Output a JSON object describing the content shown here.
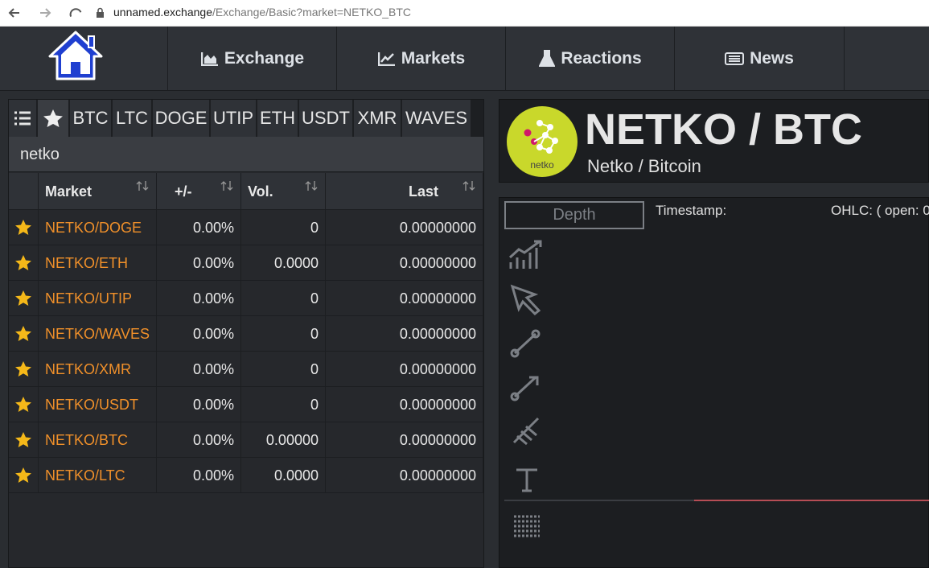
{
  "browser": {
    "host": "unnamed.exchange",
    "path": "/Exchange/Basic?market=NETKO_BTC"
  },
  "nav": {
    "items": [
      "Exchange",
      "Markets",
      "Reactions",
      "News"
    ]
  },
  "market_tabs": [
    "BTC",
    "LTC",
    "DOGE",
    "UTIP",
    "ETH",
    "USDT",
    "XMR",
    "WAVES"
  ],
  "search": "netko",
  "table": {
    "columns": [
      "Market",
      "+/-",
      "Vol.",
      "Last"
    ],
    "rows": [
      [
        "NETKO/DOGE",
        "0.00%",
        "0",
        "0.00000000"
      ],
      [
        "NETKO/ETH",
        "0.00%",
        "0.0000",
        "0.00000000"
      ],
      [
        "NETKO/UTIP",
        "0.00%",
        "0",
        "0.00000000"
      ],
      [
        "NETKO/WAVES",
        "0.00%",
        "0",
        "0.00000000"
      ],
      [
        "NETKO/XMR",
        "0.00%",
        "0",
        "0.00000000"
      ],
      [
        "NETKO/USDT",
        "0.00%",
        "0",
        "0.00000000"
      ],
      [
        "NETKO/BTC",
        "0.00%",
        "0.00000",
        "0.00000000"
      ],
      [
        "NETKO/LTC",
        "0.00%",
        "0.0000",
        "0.00000000"
      ]
    ]
  },
  "coin": {
    "title": "NETKO / BTC",
    "subtitle": "Netko / Bitcoin",
    "logo_text": "netko"
  },
  "chart_panel": {
    "depth_button": "Depth",
    "timestamp_label": "Timestamp:",
    "ohlc_label": "OHLC: ( open: 0"
  }
}
